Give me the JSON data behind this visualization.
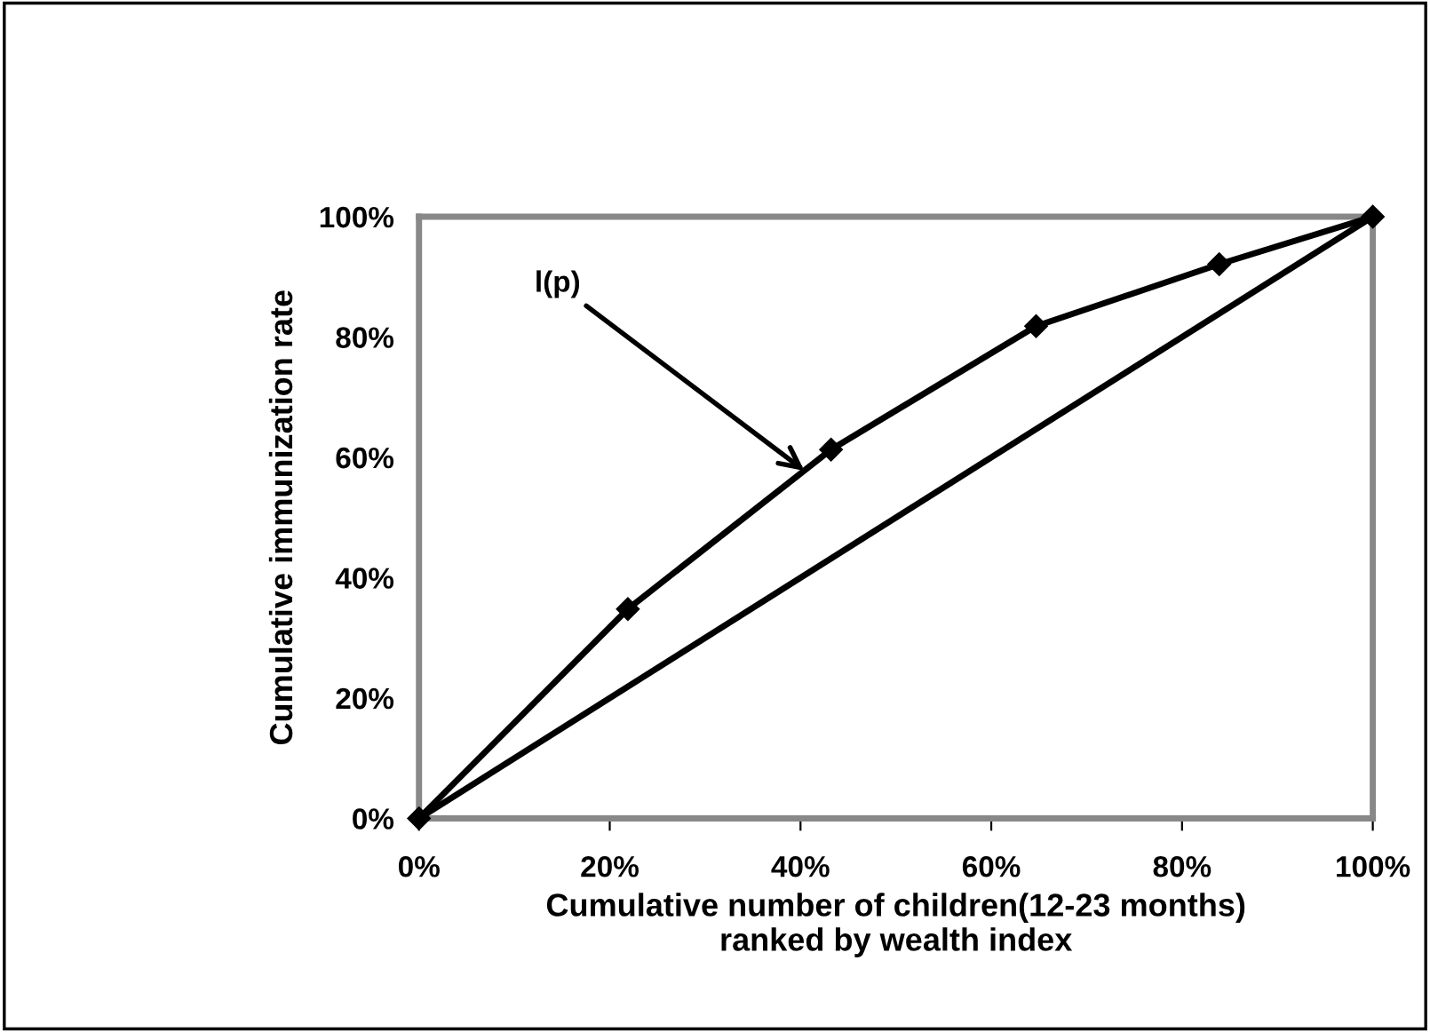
{
  "chart_data": {
    "type": "line",
    "xlabel": "Cumulative number of children(12-23 months)\nranked by wealth index",
    "ylabel": "Cumulative immunization rate",
    "series": [
      {
        "x": [
          0,
          21.9,
          43.2,
          64.7,
          83.9,
          100
        ],
        "values": [
          0,
          34.8,
          61.3,
          81.8,
          92.1,
          100
        ],
        "color": "#000000",
        "marker": "diamond"
      },
      {
        "x": [
          0,
          100
        ],
        "values": [
          0,
          100
        ],
        "color": "#000000",
        "marker": "none"
      }
    ],
    "annotations": [
      {
        "text": "l(p)",
        "x": 40.4,
        "y": 57.8
      }
    ],
    "xlim": [
      0,
      100
    ],
    "ylim": [
      0,
      100
    ],
    "xticks": [
      {
        "value": 0,
        "label": "0%"
      },
      {
        "value": 20,
        "label": "20%"
      },
      {
        "value": 40,
        "label": "40%"
      },
      {
        "value": 60,
        "label": "60%"
      },
      {
        "value": 80,
        "label": "80%"
      },
      {
        "value": 100,
        "label": "100%"
      }
    ],
    "yticks": [
      {
        "value": 0,
        "label": "0%"
      },
      {
        "value": 20,
        "label": "20%"
      },
      {
        "value": 40,
        "label": "40%"
      },
      {
        "value": 60,
        "label": "60%"
      },
      {
        "value": 80,
        "label": "80%"
      },
      {
        "value": 100,
        "label": "100%"
      }
    ],
    "grid": false,
    "legend": false,
    "line_style": "solid"
  }
}
